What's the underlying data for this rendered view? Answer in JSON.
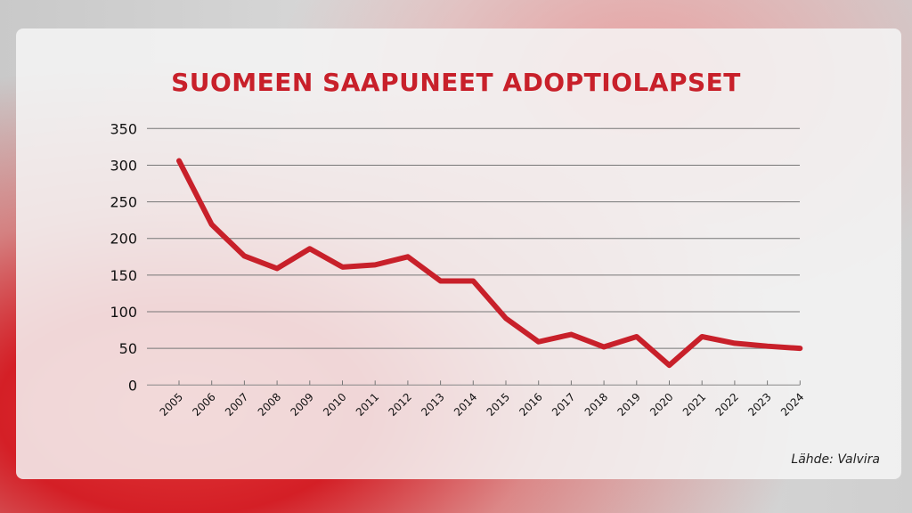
{
  "chart_data": {
    "type": "line",
    "title": "SUOMEEN SAAPUNEET ADOPTIOLAPSET",
    "xlabel": "",
    "ylabel": "",
    "categories": [
      "2005",
      "2006",
      "2007",
      "2008",
      "2009",
      "2010",
      "2011",
      "2012",
      "2013",
      "2014",
      "2015",
      "2016",
      "2017",
      "2018",
      "2019",
      "2020",
      "2021",
      "2022",
      "2023",
      "2024"
    ],
    "values": [
      306,
      219,
      176,
      159,
      186,
      161,
      164,
      175,
      142,
      142,
      91,
      59,
      69,
      52,
      66,
      27,
      66,
      57,
      53,
      50
    ],
    "ylim": [
      0,
      350
    ],
    "yticks": [
      0,
      50,
      100,
      150,
      200,
      250,
      300,
      350
    ],
    "grid": true,
    "line_color": "#c8202a",
    "source": "Lähde: Valvira"
  }
}
